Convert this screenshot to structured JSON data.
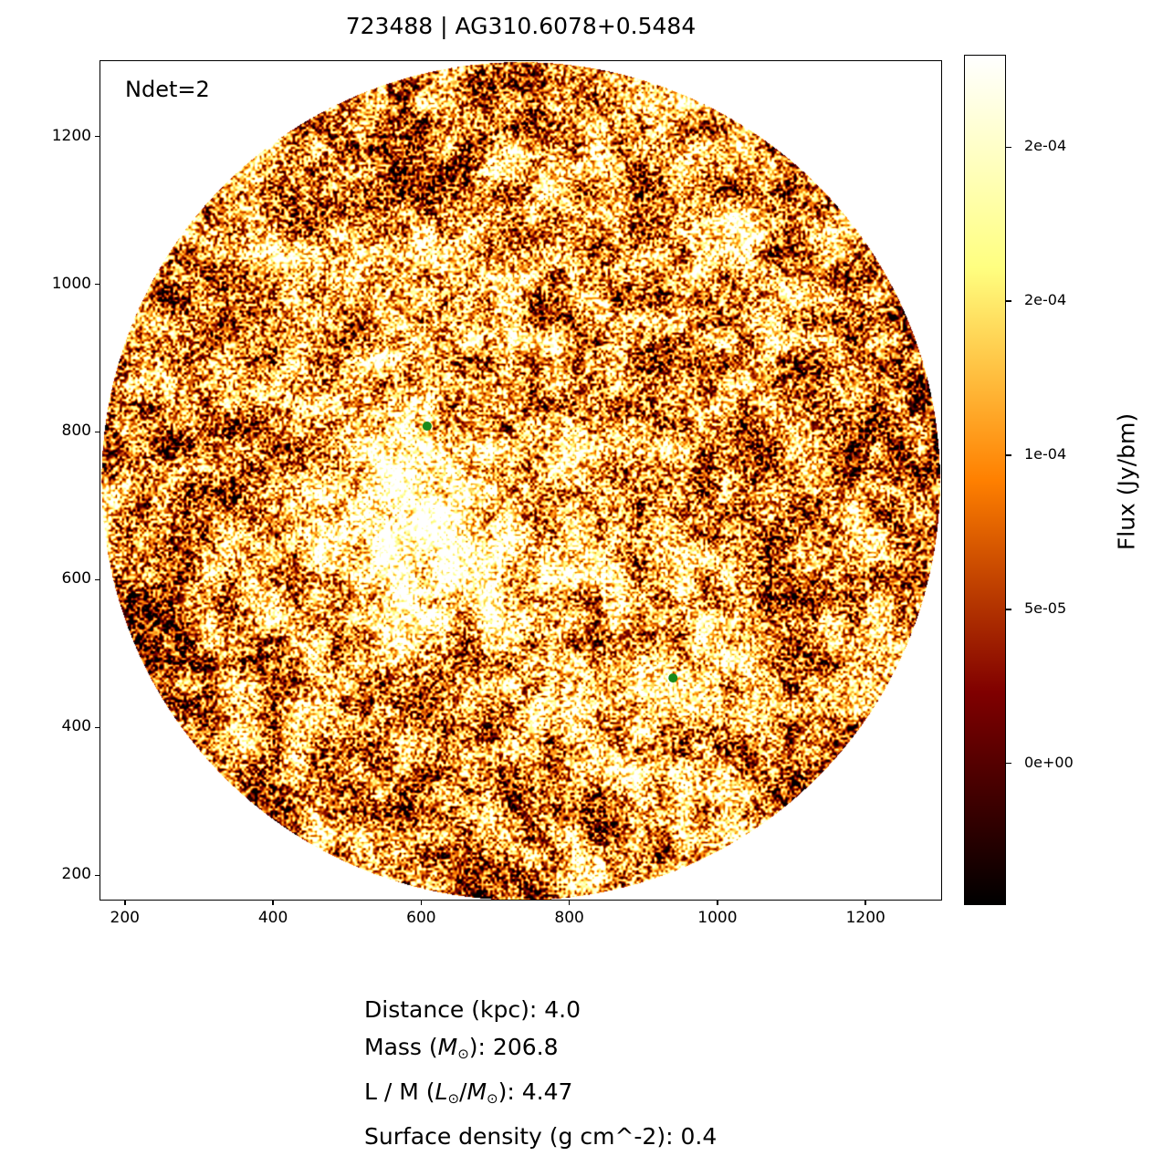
{
  "chart_data": {
    "type": "heatmap",
    "title": "723488 | AG310.6078+0.5484",
    "annotation": "Ndet=2",
    "xlim": [
      167,
      1302
    ],
    "ylim": [
      167,
      1302
    ],
    "x_ticks": [
      "200",
      "400",
      "600",
      "800",
      "1000",
      "1200"
    ],
    "y_ticks": [
      "200",
      "400",
      "600",
      "800",
      "1000",
      "1200"
    ],
    "xlabel": "",
    "ylabel": "",
    "image_footprint": {
      "shape": "circle",
      "center": [
        734,
        734
      ],
      "radius": 566
    },
    "colormap": "afmhot",
    "colorbar": {
      "label": "Flux (Jy/bm)",
      "range": [
        -4.6e-05,
        0.00023
      ],
      "ticks": [
        {
          "value": 0.0002,
          "label": "2e-04"
        },
        {
          "value": 0.00015,
          "label": "2e-04"
        },
        {
          "value": 0.0001,
          "label": "1e-04"
        },
        {
          "value": 5e-05,
          "label": "5e-05"
        },
        {
          "value": 0,
          "label": "0e+00"
        }
      ]
    },
    "detections": {
      "color": "#1a8a1a",
      "points": [
        {
          "x": 608,
          "y": 808
        },
        {
          "x": 940,
          "y": 467
        }
      ]
    }
  },
  "info": {
    "distance": "Distance (kpc): 4.0",
    "mass_prefix": "Mass (",
    "mass_sym": "M",
    "mass_suffix": "): 206.8",
    "lm_prefix": "L / M (",
    "lm_sym1": "L",
    "lm_sep": "/",
    "lm_sym2": "M",
    "lm_suffix": "): 4.47",
    "sun": "⊙",
    "surface": "Surface density (g cm^-2): 0.4"
  }
}
